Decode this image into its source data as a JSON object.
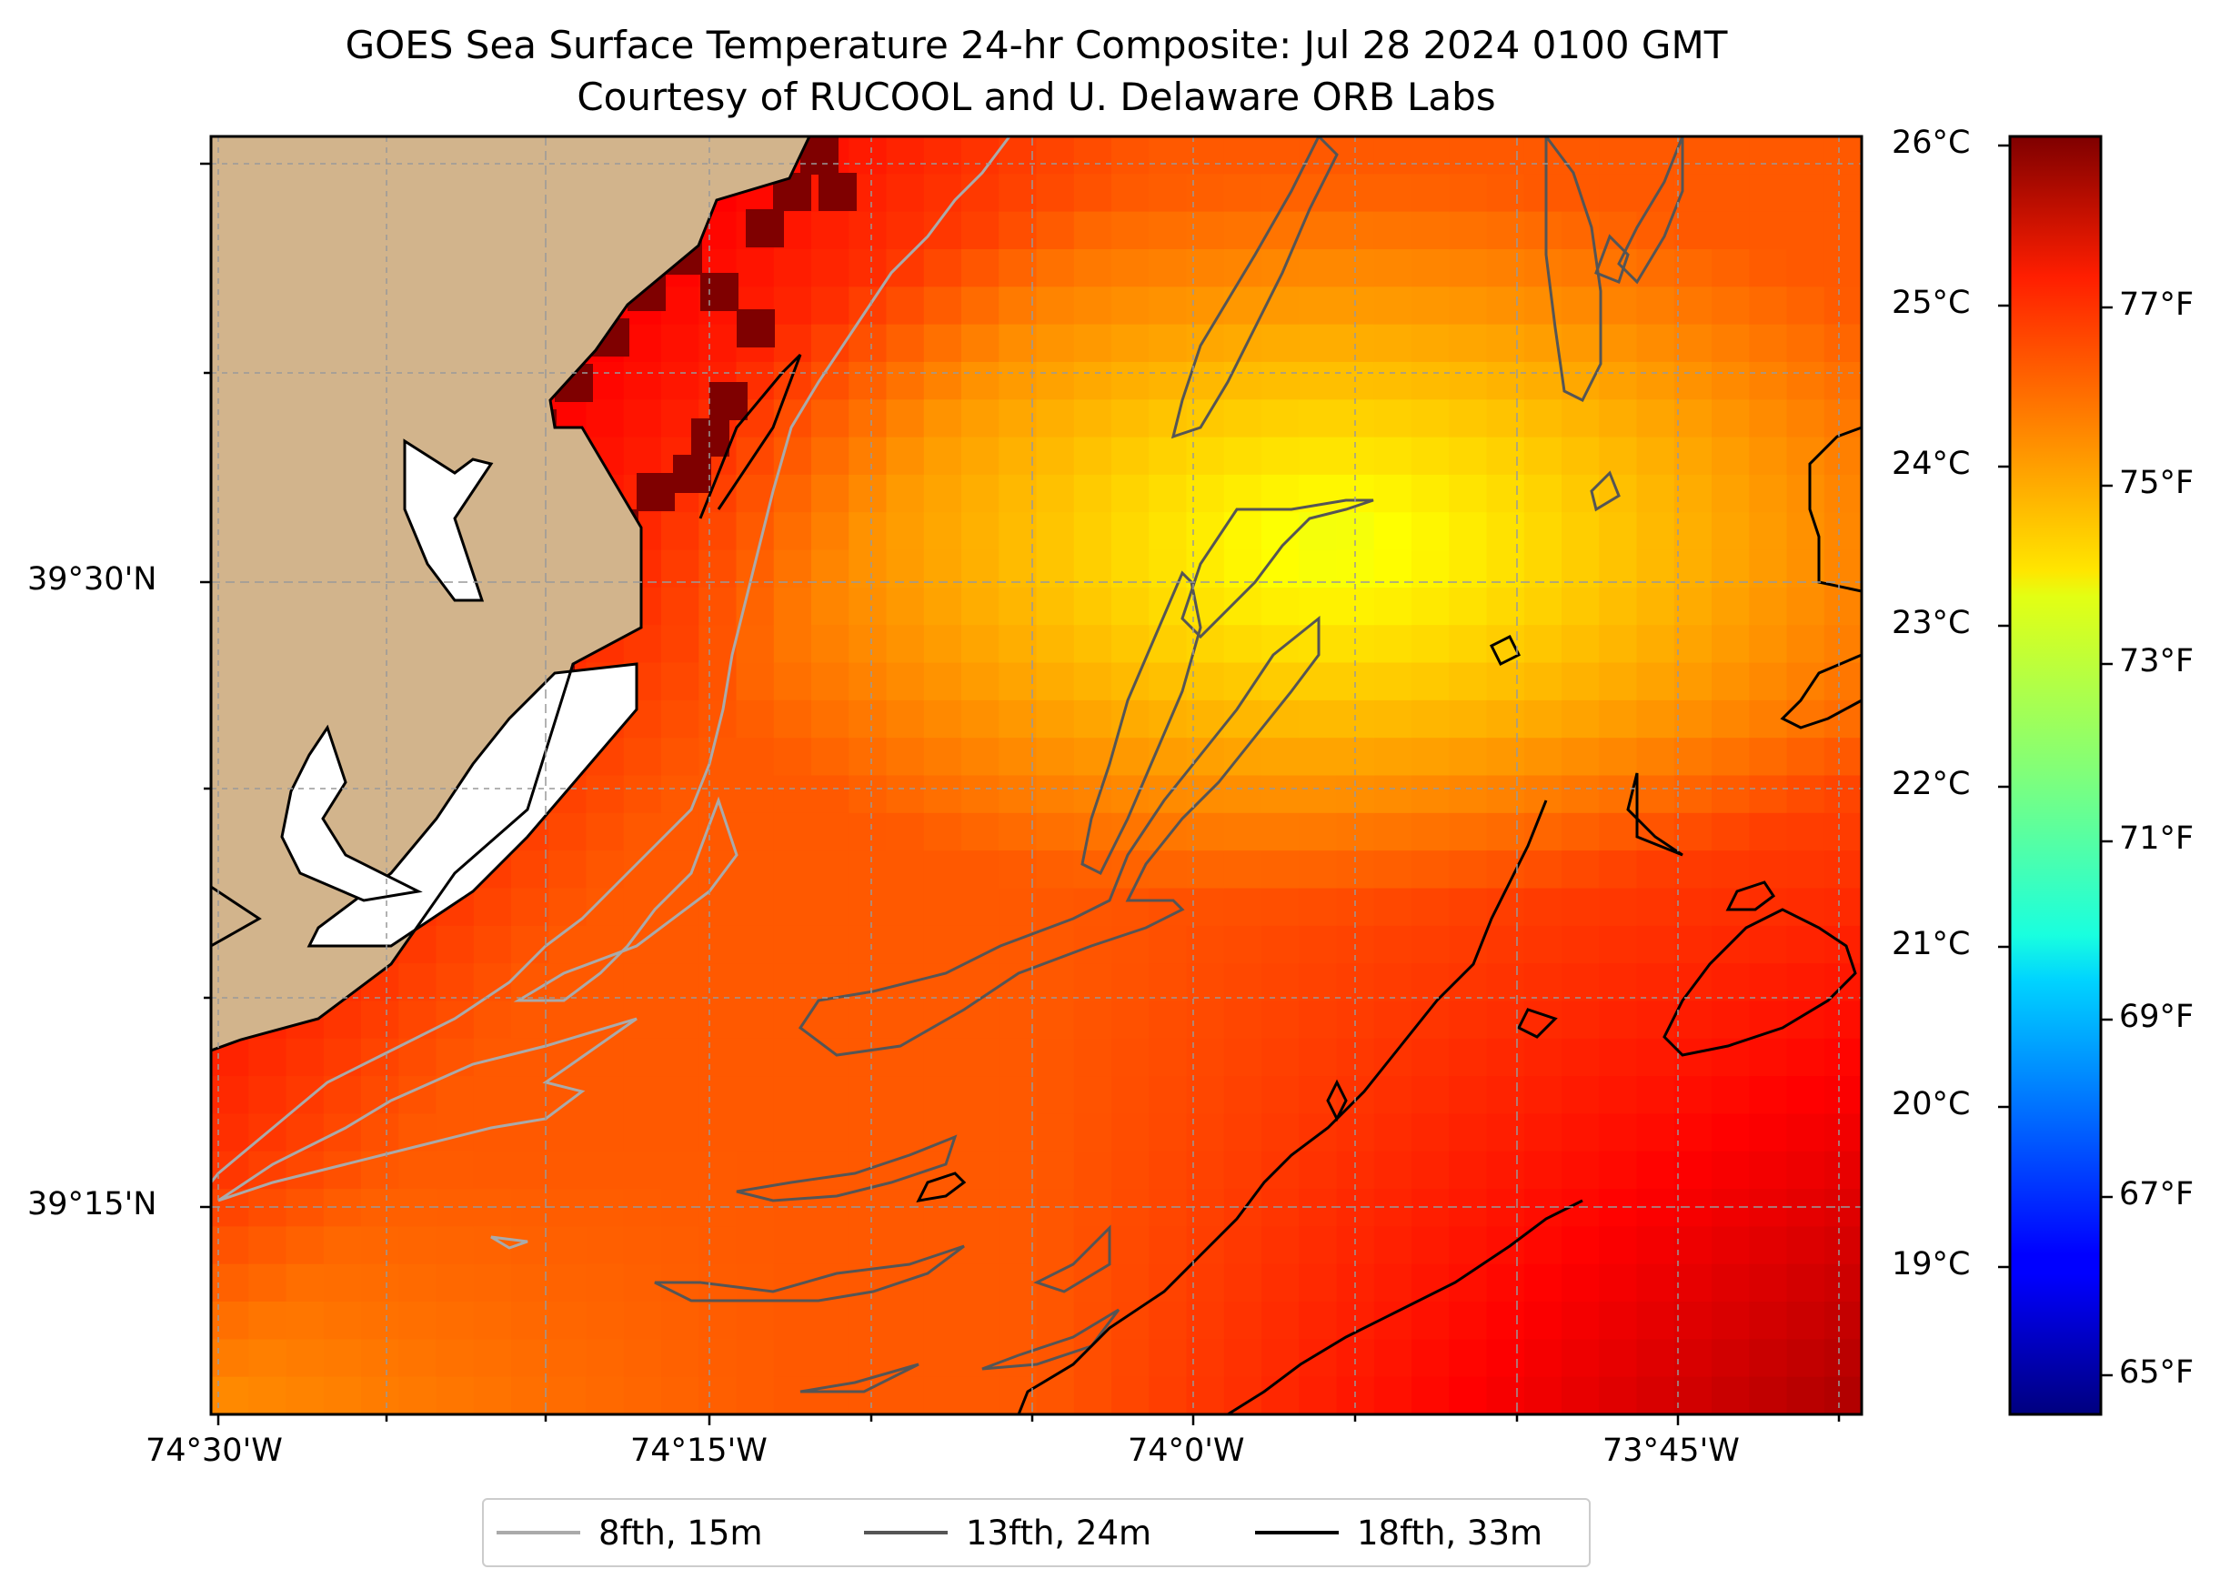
{
  "title": {
    "line1": "GOES Sea Surface Temperature 24-hr Composite: Jul 28 2024 0100 GMT",
    "line2": "Courtesy of RUCOOL and U. Delaware ORB Labs"
  },
  "axes": {
    "x_ticks": [
      "74°30'W",
      "74°15'W",
      "74°0'W",
      "73°45'W"
    ],
    "y_ticks": [
      "39°30'N",
      "39°15'N"
    ]
  },
  "colorbar": {
    "celsius_ticks": [
      "26°C",
      "25°C",
      "24°C",
      "23°C",
      "22°C",
      "21°C",
      "20°C",
      "19°C"
    ],
    "fahrenheit_ticks": [
      "77°F",
      "75°F",
      "73°F",
      "71°F",
      "69°F",
      "67°F",
      "65°F"
    ],
    "range_c": [
      18.1,
      26.1
    ],
    "colormap": "jet"
  },
  "legend": {
    "items": [
      {
        "label": "8fth, 15m",
        "color": "#aaaaaa"
      },
      {
        "label": "13fth, 24m",
        "color": "#555555"
      },
      {
        "label": "18fth, 33m",
        "color": "#000000"
      }
    ]
  },
  "colors": {
    "land": "#d2b48c",
    "coastline": "#000000",
    "grid": "#999999"
  }
}
